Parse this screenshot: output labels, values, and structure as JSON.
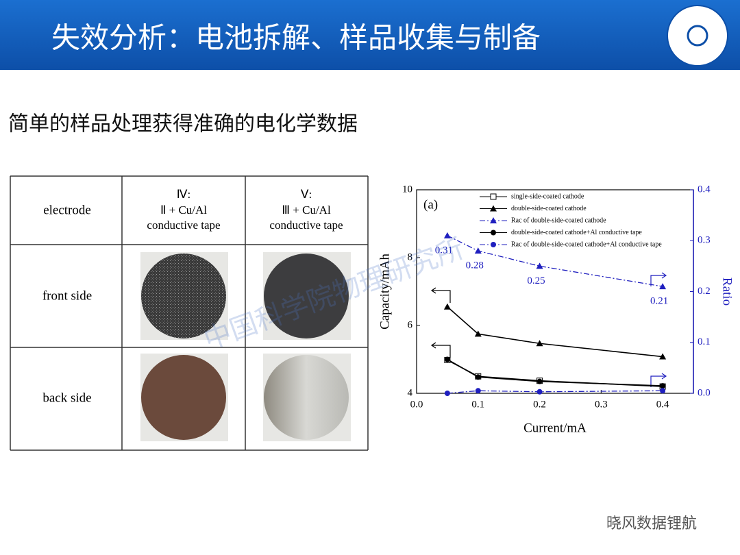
{
  "header": {
    "title": "失效分析：电池拆解、样品收集与制备"
  },
  "subtitle": "简单的样品处理获得准确的电化学数据",
  "table": {
    "header": [
      [
        "electrode"
      ],
      [
        "Ⅳ:",
        "Ⅱ + Cu/Al",
        "conductive tape"
      ],
      [
        "Ⅴ:",
        "Ⅲ + Cu/Al",
        "conductive tape"
      ]
    ],
    "rows": [
      "front side",
      "back side"
    ]
  },
  "chart_data": {
    "type": "line",
    "annotation": "(a)",
    "x_label": "Current/mA",
    "y_label": "Capacity/mAh",
    "y2_label": "Ratio",
    "x": [
      0.05,
      0.1,
      0.2,
      0.4
    ],
    "xlim": [
      0,
      0.45
    ],
    "xticks": [
      {
        "value": 0,
        "label": "0.0"
      },
      0.1,
      0.2,
      0.3,
      0.4
    ],
    "ylim": [
      4,
      10
    ],
    "yticks": [
      4,
      6,
      8,
      10
    ],
    "y2lim": [
      0,
      0.4
    ],
    "y2ticks": [
      {
        "value": 0,
        "label": "0.0"
      },
      0.1,
      0.2,
      0.3,
      0.4
    ],
    "series": [
      {
        "name": "single-side-coated cathode",
        "color": "#000000",
        "marker": "square-open",
        "line_style": "solid",
        "values": [
          4.98,
          4.5,
          4.37,
          4.2
        ]
      },
      {
        "name": "double-side-coated cathode",
        "color": "#000000",
        "marker": "triangle",
        "line_style": "solid",
        "values": [
          6.55,
          5.75,
          5.47,
          5.08
        ]
      },
      {
        "name": "Rac of double-side-coated cathode",
        "color": "#1f1fbf",
        "marker": "triangle",
        "line_style": "dash-dot",
        "axis": "y2",
        "values": [
          0.31,
          0.28,
          0.25,
          0.21
        ]
      },
      {
        "name": "double-side-coated cathode+Al conductive tape",
        "color": "#000000",
        "marker": "circle",
        "line_style": "solid",
        "values": [
          5.0,
          4.48,
          4.35,
          4.22
        ]
      },
      {
        "name": "Rac of  double-side-coated cathode+Al conductive tape",
        "color": "#1f1fbf",
        "marker": "circle",
        "line_style": "dash-dot",
        "axis": "y2",
        "values": [
          0.0,
          0.005,
          0.003,
          0.005
        ]
      }
    ]
  },
  "watermark": "中国科学院物理研究所",
  "footer": "晓风数据锂航"
}
